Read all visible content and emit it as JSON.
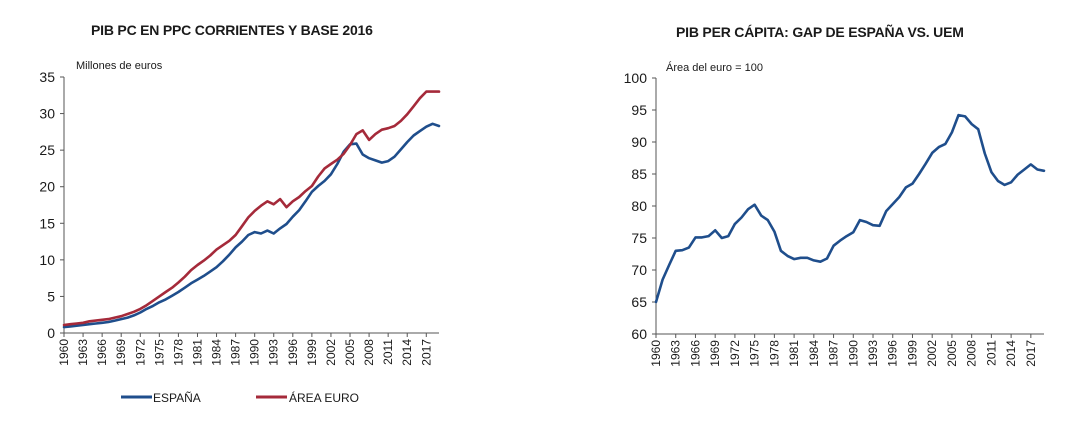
{
  "chart_data": [
    {
      "type": "line",
      "title": "PIB PC EN PPC CORRIENTES Y BASE 2016",
      "ylabel": "Millones de euros",
      "xlabel": "",
      "ylim": [
        0,
        35
      ],
      "yticks": [
        0,
        5,
        10,
        15,
        20,
        25,
        30,
        35
      ],
      "xlim": [
        1960,
        2019
      ],
      "xticks": [
        1960,
        1963,
        1966,
        1969,
        1972,
        1975,
        1978,
        1981,
        1984,
        1987,
        1990,
        1993,
        1996,
        1999,
        2002,
        2005,
        2008,
        2011,
        2014,
        2017
      ],
      "grid": false,
      "legend": "bottom",
      "series": [
        {
          "name": "ESPAÑA",
          "color": "#1f4e8c",
          "x": [
            1960,
            1961,
            1962,
            1963,
            1964,
            1965,
            1966,
            1967,
            1968,
            1969,
            1970,
            1971,
            1972,
            1973,
            1974,
            1975,
            1976,
            1977,
            1978,
            1979,
            1980,
            1981,
            1982,
            1983,
            1984,
            1985,
            1986,
            1987,
            1988,
            1989,
            1990,
            1991,
            1992,
            1993,
            1994,
            1995,
            1996,
            1997,
            1998,
            1999,
            2000,
            2001,
            2002,
            2003,
            2004,
            2005,
            2006,
            2007,
            2008,
            2009,
            2010,
            2011,
            2012,
            2013,
            2014,
            2015,
            2016,
            2017,
            2018,
            2019
          ],
          "values": [
            0.8,
            0.9,
            1.0,
            1.1,
            1.2,
            1.3,
            1.4,
            1.5,
            1.7,
            1.9,
            2.1,
            2.4,
            2.8,
            3.3,
            3.7,
            4.2,
            4.6,
            5.1,
            5.6,
            6.2,
            6.8,
            7.3,
            7.8,
            8.4,
            9.0,
            9.8,
            10.7,
            11.7,
            12.5,
            13.4,
            13.8,
            13.6,
            14.0,
            13.6,
            14.3,
            14.9,
            15.9,
            16.8,
            18.0,
            19.3,
            20.1,
            20.8,
            21.7,
            23.1,
            24.8,
            25.8,
            25.9,
            24.4,
            23.9,
            23.6,
            23.3,
            23.5,
            24.1,
            25.1,
            26.1,
            27.0,
            27.6,
            28.2,
            28.6,
            28.3
          ]
        },
        {
          "name": "ÁREA EURO",
          "color": "#a52a3a",
          "x": [
            1960,
            1961,
            1962,
            1963,
            1964,
            1965,
            1966,
            1967,
            1968,
            1969,
            1970,
            1971,
            1972,
            1973,
            1974,
            1975,
            1976,
            1977,
            1978,
            1979,
            1980,
            1981,
            1982,
            1983,
            1984,
            1985,
            1986,
            1987,
            1988,
            1989,
            1990,
            1991,
            1992,
            1993,
            1994,
            1995,
            1996,
            1997,
            1998,
            1999,
            2000,
            2001,
            2002,
            2003,
            2004,
            2005,
            2006,
            2007,
            2008,
            2009,
            2010,
            2011,
            2012,
            2013,
            2014,
            2015,
            2016,
            2017,
            2018,
            2019
          ],
          "values": [
            1.1,
            1.2,
            1.3,
            1.4,
            1.6,
            1.7,
            1.8,
            1.9,
            2.1,
            2.3,
            2.6,
            2.9,
            3.3,
            3.8,
            4.4,
            5.0,
            5.6,
            6.2,
            6.9,
            7.7,
            8.6,
            9.3,
            9.9,
            10.6,
            11.4,
            12.0,
            12.6,
            13.4,
            14.6,
            15.8,
            16.7,
            17.4,
            18.0,
            17.6,
            18.3,
            17.2,
            18.0,
            18.6,
            19.4,
            20.1,
            21.4,
            22.5,
            23.1,
            23.7,
            24.5,
            25.7,
            27.2,
            27.7,
            26.4,
            27.2,
            27.8,
            28.0,
            28.3,
            29.0,
            29.9,
            31.0,
            32.1,
            33.0,
            33.0,
            33.0
          ]
        }
      ]
    },
    {
      "type": "line",
      "title": "PIB PER CÁPITA: GAP DE ESPAÑA VS. UEM",
      "ylabel": "Área del euro = 100",
      "xlabel": "",
      "ylim": [
        60,
        100
      ],
      "yticks": [
        60,
        65,
        70,
        75,
        80,
        85,
        90,
        95,
        100
      ],
      "xlim": [
        1960,
        2019
      ],
      "xticks": [
        1960,
        1963,
        1966,
        1969,
        1972,
        1975,
        1978,
        1981,
        1984,
        1987,
        1990,
        1993,
        1996,
        1999,
        2002,
        2005,
        2008,
        2011,
        2014,
        2017
      ],
      "grid": false,
      "series": [
        {
          "name": "",
          "color": "#1f4e8c",
          "x": [
            1960,
            1961,
            1962,
            1963,
            1964,
            1965,
            1966,
            1967,
            1968,
            1969,
            1970,
            1971,
            1972,
            1973,
            1974,
            1975,
            1976,
            1977,
            1978,
            1979,
            1980,
            1981,
            1982,
            1983,
            1984,
            1985,
            1986,
            1987,
            1988,
            1989,
            1990,
            1991,
            1992,
            1993,
            1994,
            1995,
            1996,
            1997,
            1998,
            1999,
            2000,
            2001,
            2002,
            2003,
            2004,
            2005,
            2006,
            2007,
            2008,
            2009,
            2010,
            2011,
            2012,
            2013,
            2014,
            2015,
            2016,
            2017,
            2018,
            2019
          ],
          "values": [
            65.0,
            68.5,
            70.8,
            73.0,
            73.1,
            73.5,
            75.1,
            75.1,
            75.3,
            76.2,
            75.0,
            75.3,
            77.2,
            78.2,
            79.5,
            80.2,
            78.5,
            77.8,
            76.0,
            73.0,
            72.2,
            71.7,
            71.9,
            71.9,
            71.5,
            71.3,
            71.8,
            73.8,
            74.6,
            75.3,
            75.9,
            77.8,
            77.5,
            77.0,
            76.9,
            79.2,
            80.3,
            81.4,
            82.9,
            83.5,
            85.0,
            86.6,
            88.3,
            89.2,
            89.7,
            91.5,
            94.2,
            94.0,
            92.8,
            92.0,
            88.2,
            85.3,
            83.9,
            83.3,
            83.7,
            84.9,
            85.7,
            86.5,
            85.7,
            85.5
          ]
        }
      ]
    }
  ]
}
